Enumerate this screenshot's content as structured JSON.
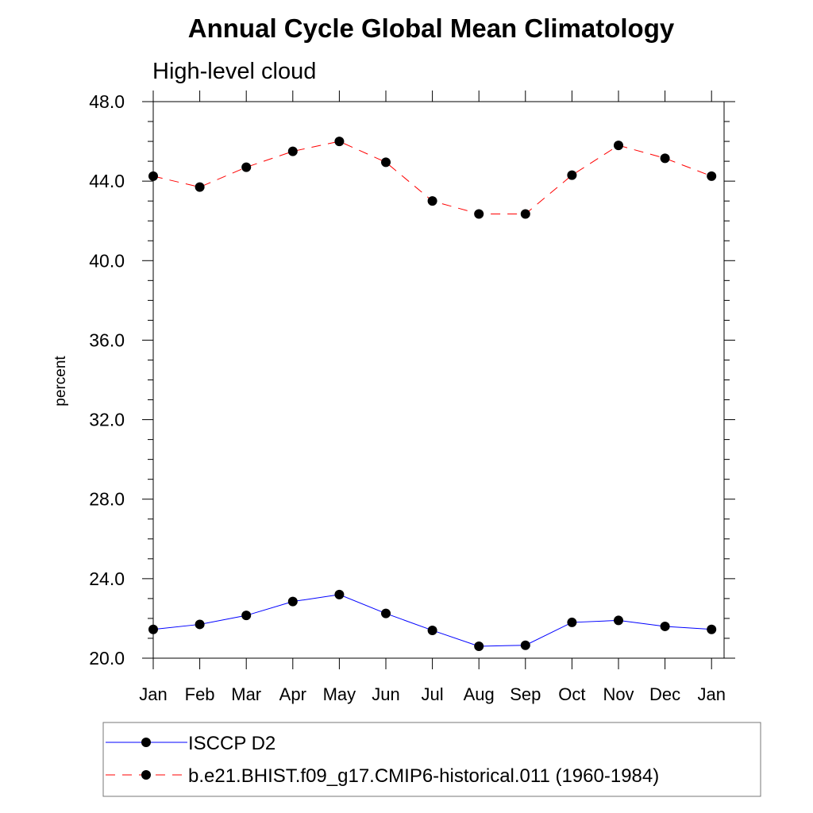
{
  "chart_data": {
    "type": "line",
    "title": "Annual Cycle Global Mean Climatology",
    "subtitle": "High-level cloud",
    "xlabel": "",
    "ylabel": "percent",
    "ylim": [
      20.0,
      48.0
    ],
    "y_ticks": [
      "20.0",
      "24.0",
      "28.0",
      "32.0",
      "36.0",
      "40.0",
      "44.0",
      "48.0"
    ],
    "y_tick_values": [
      20,
      24,
      28,
      32,
      36,
      40,
      44,
      48
    ],
    "categories": [
      "Jan",
      "Feb",
      "Mar",
      "Apr",
      "May",
      "Jun",
      "Jul",
      "Aug",
      "Sep",
      "Oct",
      "Nov",
      "Dec",
      "Jan"
    ],
    "series": [
      {
        "name": "ISCCP D2",
        "color": "#0000ff",
        "dash": "solid",
        "values": [
          21.45,
          21.7,
          22.15,
          22.85,
          23.2,
          22.25,
          21.4,
          20.6,
          20.65,
          21.8,
          21.9,
          21.6,
          21.45
        ]
      },
      {
        "name": "b.e21.BHIST.f09_g17.CMIP6-historical.011 (1960-1984)",
        "color": "#ff0000",
        "dash": "dashed",
        "values": [
          44.25,
          43.7,
          44.7,
          45.5,
          46.0,
          44.95,
          43.0,
          42.35,
          42.35,
          44.3,
          45.8,
          45.15,
          44.25
        ]
      }
    ],
    "legend_position": "bottom"
  }
}
